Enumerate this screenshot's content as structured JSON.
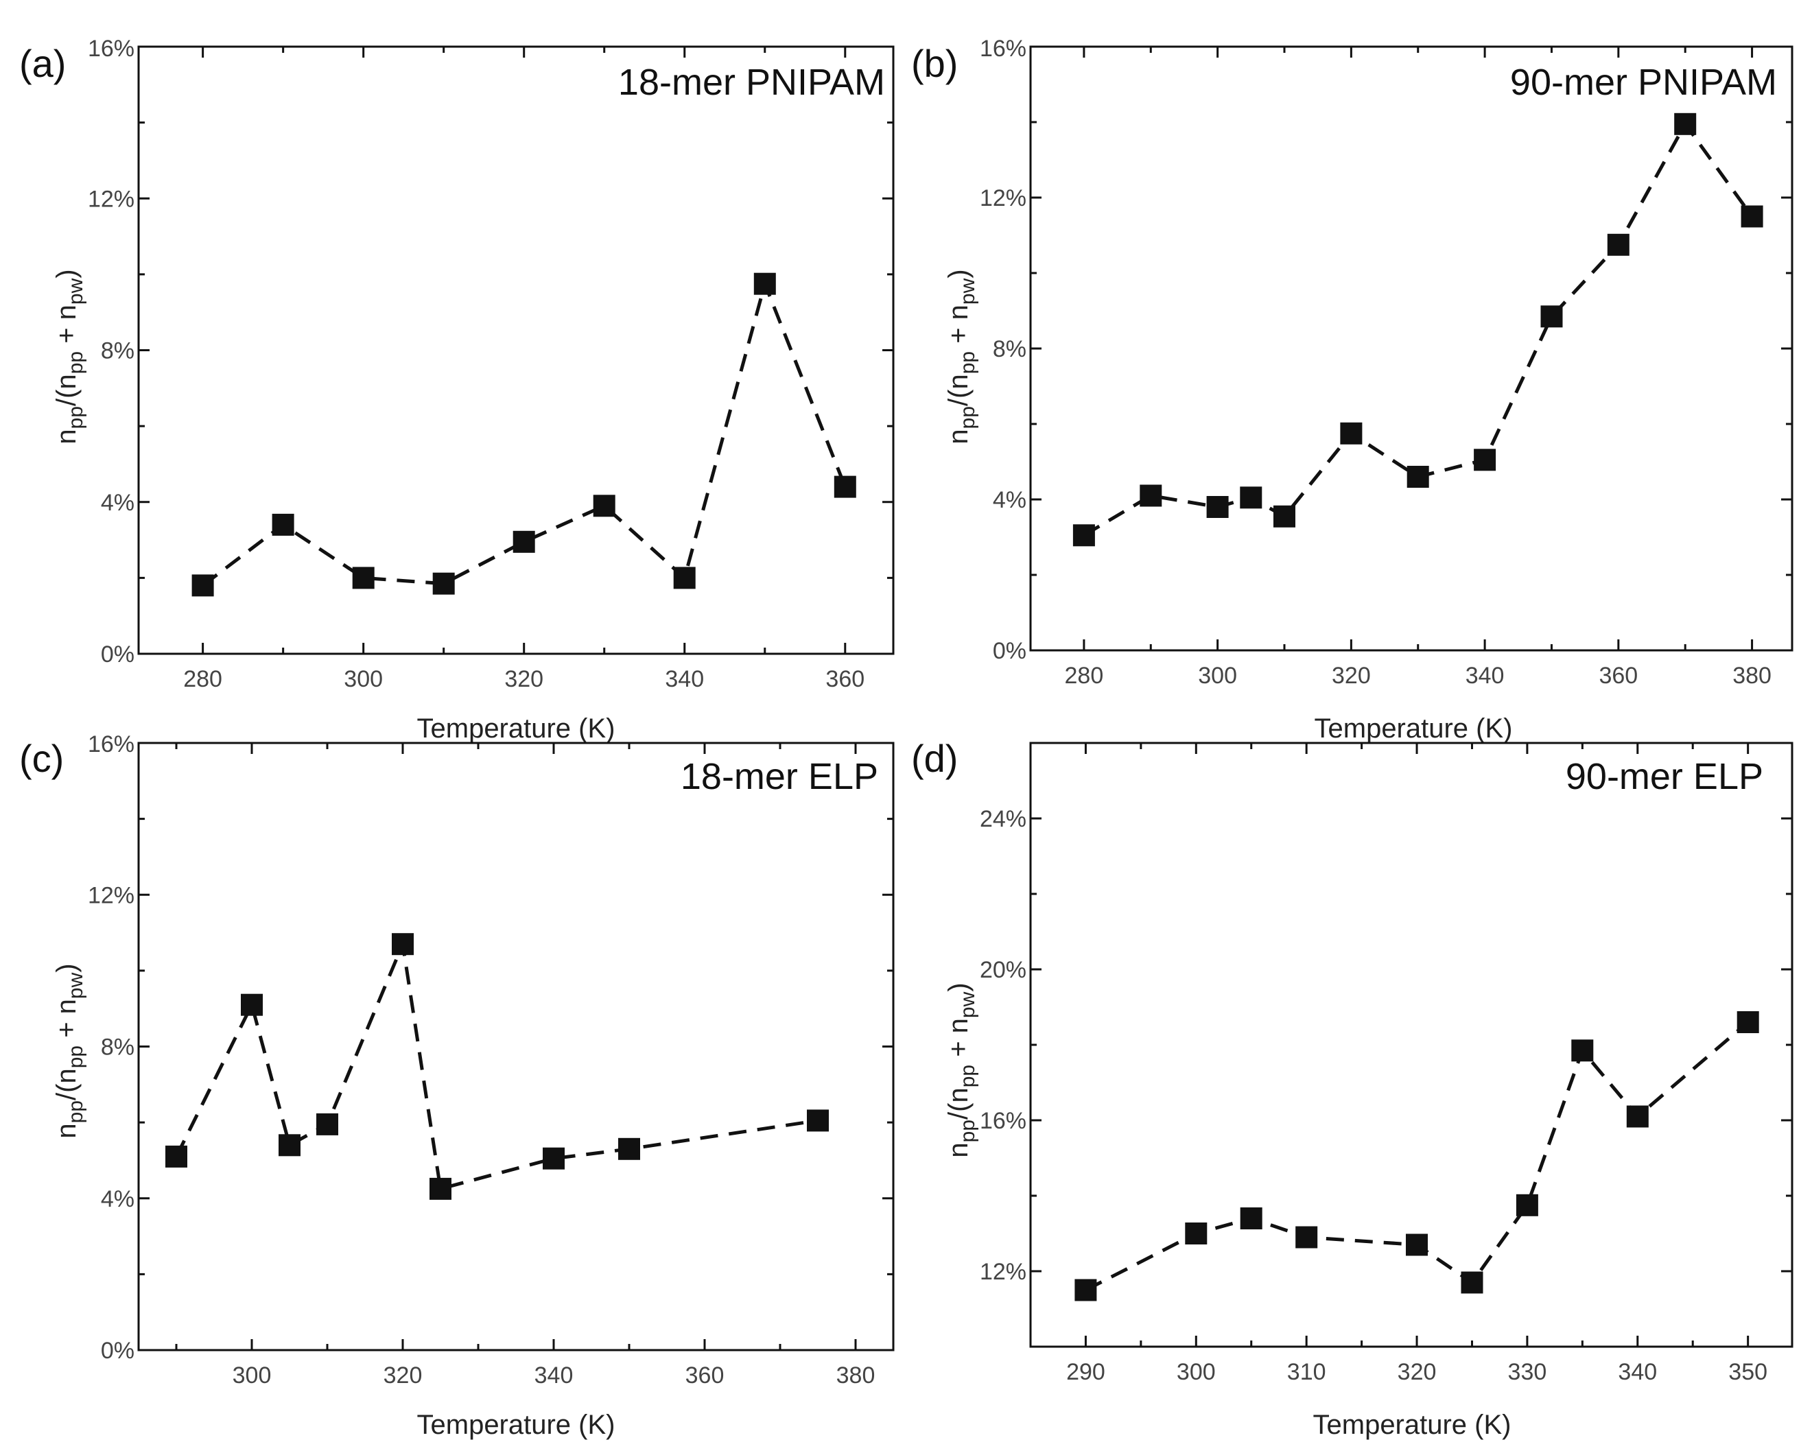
{
  "chart_data": [
    {
      "type": "line",
      "panel_label": "(a)",
      "title": "18-mer PNIPAM",
      "xlabel": "Temperature (K)",
      "ylabel": "n_pp/(n_pp + n_pw)",
      "ylabel_main": "n",
      "ylabel_sub1": "pp",
      "ylabel_mid": "/(n",
      "ylabel_sub2": "pp",
      "ylabel_plus": " + n",
      "ylabel_sub3": "pw",
      "ylabel_close": ")",
      "xlim": [
        272,
        366
      ],
      "ylim": [
        0,
        16
      ],
      "xticks": [
        280,
        300,
        320,
        340,
        360
      ],
      "xtick_labels": [
        "280",
        "300",
        "320",
        "340",
        "360"
      ],
      "yticks": [
        0,
        4,
        8,
        12,
        16
      ],
      "ytick_labels": [
        "0%",
        "4%",
        "8%",
        "12%",
        "16%"
      ],
      "legend_position": "top-right",
      "x": [
        280,
        290,
        300,
        310,
        320,
        330,
        340,
        350,
        360
      ],
      "y": [
        1.8,
        3.4,
        2.0,
        1.85,
        2.95,
        3.9,
        2.0,
        9.75,
        4.4
      ]
    },
    {
      "type": "line",
      "panel_label": "(b)",
      "title": "90-mer PNIPAM",
      "xlabel": "Temperature (K)",
      "ylabel": "n_pp/(n_pp + n_pw)",
      "ylabel_main": "n",
      "ylabel_sub1": "pp",
      "ylabel_mid": "/(n",
      "ylabel_sub2": "pp",
      "ylabel_plus": " + n",
      "ylabel_sub3": "pw",
      "ylabel_close": ")",
      "xlim": [
        272,
        386
      ],
      "ylim": [
        0,
        16
      ],
      "xticks": [
        280,
        300,
        320,
        340,
        360,
        380
      ],
      "xtick_labels": [
        "280",
        "300",
        "320",
        "340",
        "360",
        "380"
      ],
      "yticks": [
        0,
        4,
        8,
        12,
        16
      ],
      "ytick_labels": [
        "0%",
        "4%",
        "8%",
        "12%",
        "16%"
      ],
      "legend_position": "top-right",
      "x": [
        280,
        290,
        300,
        305,
        310,
        320,
        330,
        340,
        350,
        360,
        370,
        380
      ],
      "y": [
        3.05,
        4.1,
        3.8,
        4.05,
        3.55,
        5.75,
        4.6,
        5.05,
        8.85,
        10.75,
        13.95,
        11.5
      ]
    },
    {
      "type": "line",
      "panel_label": "(c)",
      "title": "18-mer ELP",
      "xlabel": "Temperature (K)",
      "ylabel": "n_pp/(n_pp + n_pw)",
      "ylabel_main": "n",
      "ylabel_sub1": "pp",
      "ylabel_mid": "/(n",
      "ylabel_sub2": "pp",
      "ylabel_plus": " + n",
      "ylabel_sub3": "pw",
      "ylabel_close": ")",
      "xlim": [
        285,
        385
      ],
      "ylim": [
        0,
        16
      ],
      "xticks": [
        300,
        320,
        340,
        360,
        380
      ],
      "xtick_labels": [
        "300",
        "320",
        "340",
        "360",
        "380"
      ],
      "yticks": [
        0,
        4,
        8,
        12,
        16
      ],
      "ytick_labels": [
        "0%",
        "4%",
        "8%",
        "12%",
        "16%"
      ],
      "legend_position": "top-right",
      "x": [
        290,
        300,
        305,
        310,
        320,
        325,
        340,
        350,
        375
      ],
      "y": [
        5.1,
        9.1,
        5.4,
        5.95,
        10.7,
        4.25,
        5.05,
        5.3,
        6.05
      ]
    },
    {
      "type": "line",
      "panel_label": "(d)",
      "title": "90-mer ELP",
      "xlabel": "Temperature (K)",
      "ylabel": "n_pp/(n_pp + n_pw)",
      "ylabel_main": "n",
      "ylabel_sub1": "pp",
      "ylabel_mid": "/(n",
      "ylabel_sub2": "pp",
      "ylabel_plus": " + n",
      "ylabel_sub3": "pw",
      "ylabel_close": ")",
      "xlim": [
        285,
        354
      ],
      "ylim": [
        10,
        26
      ],
      "xticks": [
        290,
        300,
        310,
        320,
        330,
        340,
        350
      ],
      "xtick_labels": [
        "290",
        "300",
        "310",
        "320",
        "330",
        "340",
        "350"
      ],
      "yticks": [
        12,
        16,
        20,
        24
      ],
      "ytick_labels": [
        "12%",
        "16%",
        "20%",
        "24%"
      ],
      "legend_position": "top-right",
      "x": [
        290,
        300,
        305,
        310,
        320,
        325,
        330,
        335,
        340,
        350
      ],
      "y": [
        11.5,
        13.0,
        13.4,
        12.9,
        12.7,
        11.7,
        13.75,
        17.85,
        16.1,
        18.6
      ]
    }
  ]
}
